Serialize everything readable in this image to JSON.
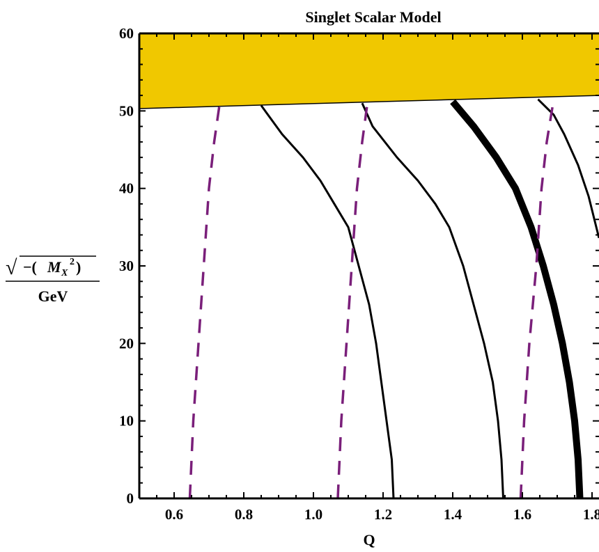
{
  "chart_data": {
    "type": "line",
    "title": "Singlet Scalar Model",
    "xlabel": "Q",
    "ylabel": {
      "sqrt": "√",
      "minus": "−(",
      "symbol": "M",
      "subscript": "X",
      "superscript": "2",
      "close": ")",
      "denominator": "GeV"
    },
    "xlim": [
      0.5,
      1.82
    ],
    "ylim": [
      0,
      60
    ],
    "xticks": [
      "0.6",
      "0.8",
      "1.0",
      "1.2",
      "1.4",
      "1.6",
      "1.8"
    ],
    "yticks": [
      "0",
      "10",
      "20",
      "30",
      "40",
      "50",
      "60"
    ],
    "shaded_band": {
      "color": "#f0c800",
      "lower_boundary": {
        "x": [
          0.5,
          1.82
        ],
        "y": [
          50.3,
          52.0
        ]
      },
      "upper": 60
    },
    "series": [
      {
        "style": "solid",
        "color": "#000000",
        "weight": "normal",
        "x": [
          1.23,
          1.225,
          1.21,
          1.195,
          1.18,
          1.16,
          1.13,
          1.1,
          1.06,
          1.02,
          0.97,
          0.91,
          0.85
        ],
        "y": [
          0,
          5,
          10,
          15,
          20,
          25,
          30,
          35,
          38,
          41,
          44,
          47,
          50.7
        ]
      },
      {
        "style": "solid",
        "color": "#000000",
        "weight": "normal",
        "x": [
          1.545,
          1.54,
          1.53,
          1.515,
          1.49,
          1.46,
          1.43,
          1.39,
          1.35,
          1.3,
          1.24,
          1.17,
          1.14
        ],
        "y": [
          0,
          5,
          10,
          15,
          20,
          25,
          30,
          35,
          38,
          41,
          44,
          48,
          51.0
        ]
      },
      {
        "style": "solid",
        "color": "#000000",
        "weight": "heavy",
        "x": [
          1.765,
          1.76,
          1.75,
          1.735,
          1.715,
          1.69,
          1.66,
          1.625,
          1.58,
          1.525,
          1.46,
          1.4
        ],
        "y": [
          0,
          5,
          10,
          15,
          20,
          25,
          30,
          35,
          40,
          44,
          48,
          51.2
        ]
      },
      {
        "style": "solid",
        "color": "#000000",
        "weight": "normal",
        "x": [
          1.82,
          1.79,
          1.76,
          1.72,
          1.69,
          1.645
        ],
        "y": [
          33.6,
          39,
          43,
          47,
          49.5,
          51.5
        ]
      },
      {
        "style": "dashed",
        "color": "#7a1f7a",
        "weight": "normal",
        "x": [
          0.645,
          0.655,
          0.67,
          0.685,
          0.7,
          0.715,
          0.73
        ],
        "y": [
          0,
          10,
          20,
          30,
          40,
          46,
          50.7
        ]
      },
      {
        "style": "dashed",
        "color": "#7a1f7a",
        "weight": "normal",
        "x": [
          1.07,
          1.08,
          1.095,
          1.11,
          1.125,
          1.14,
          1.155
        ],
        "y": [
          0,
          10,
          20,
          30,
          40,
          46,
          51.0
        ]
      },
      {
        "style": "dashed",
        "color": "#7a1f7a",
        "weight": "normal",
        "x": [
          1.595,
          1.605,
          1.62,
          1.64,
          1.655,
          1.67,
          1.69
        ],
        "y": [
          0,
          10,
          20,
          30,
          40,
          46,
          51.5
        ]
      }
    ],
    "grid": false,
    "legend": "none"
  }
}
